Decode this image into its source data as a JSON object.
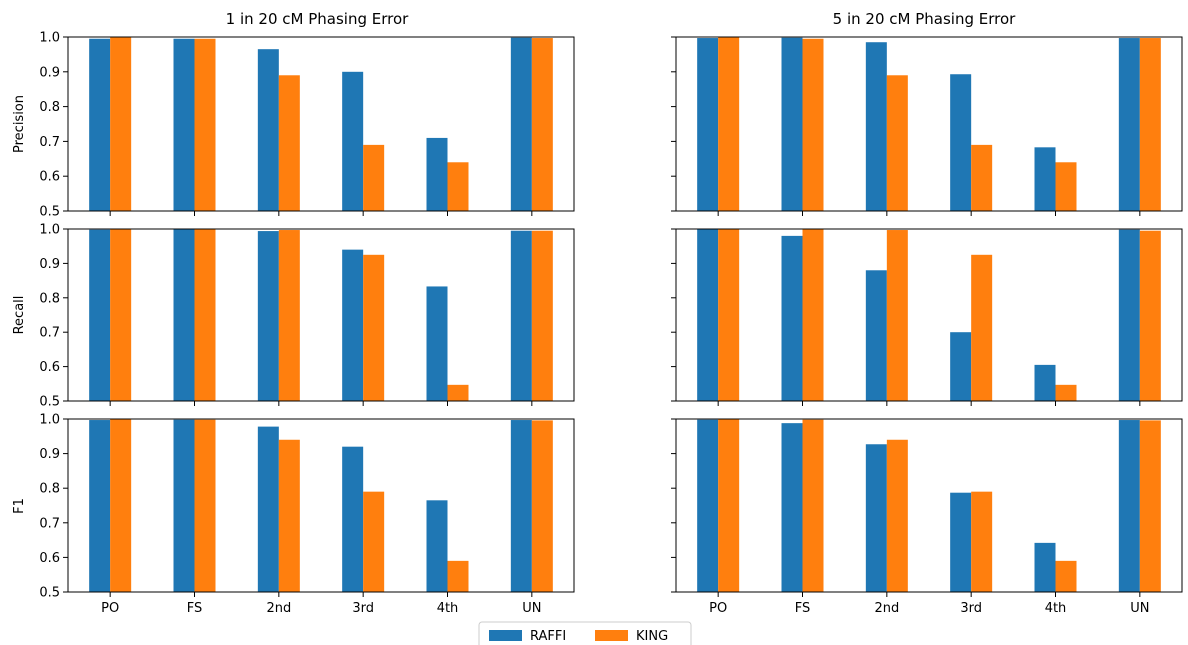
{
  "chart_data": {
    "type": "bar",
    "categories": [
      "PO",
      "FS",
      "2nd",
      "3rd",
      "4th",
      "UN"
    ],
    "columns": [
      {
        "title": "1 in 20 cM Phasing Error"
      },
      {
        "title": "5 in 20 cM Phasing Error"
      }
    ],
    "rows": [
      {
        "ylabel": "Precision"
      },
      {
        "ylabel": "Recall"
      },
      {
        "ylabel": "F1"
      }
    ],
    "ylim": [
      0.5,
      1.0
    ],
    "yticks": [
      "0.5",
      "0.6",
      "0.7",
      "0.8",
      "0.9",
      "1.0"
    ],
    "series_colors": {
      "RAFFI": "#1f77b4",
      "KING": "#ff7f0e"
    },
    "legend": {
      "placement": "bottom-center",
      "items": [
        "RAFFI",
        "KING"
      ]
    },
    "panels": [
      {
        "row": 0,
        "col": 0,
        "series": [
          {
            "name": "RAFFI",
            "values": [
              0.995,
              0.995,
              0.965,
              0.9,
              0.71,
              0.998
            ]
          },
          {
            "name": "KING",
            "values": [
              1.0,
              0.995,
              0.89,
              0.69,
              0.64,
              0.997
            ]
          }
        ]
      },
      {
        "row": 0,
        "col": 1,
        "series": [
          {
            "name": "RAFFI",
            "values": [
              0.997,
              0.998,
              0.985,
              0.893,
              0.683,
              0.997
            ]
          },
          {
            "name": "KING",
            "values": [
              1.0,
              0.995,
              0.89,
              0.69,
              0.64,
              0.997
            ]
          }
        ]
      },
      {
        "row": 1,
        "col": 0,
        "series": [
          {
            "name": "RAFFI",
            "values": [
              0.998,
              0.999,
              0.994,
              0.94,
              0.833,
              0.995
            ]
          },
          {
            "name": "KING",
            "values": [
              1.0,
              0.999,
              0.997,
              0.925,
              0.547,
              0.995
            ]
          }
        ]
      },
      {
        "row": 1,
        "col": 1,
        "series": [
          {
            "name": "RAFFI",
            "values": [
              0.999,
              0.98,
              0.88,
              0.7,
              0.605,
              0.998
            ]
          },
          {
            "name": "KING",
            "values": [
              1.0,
              0.999,
              0.997,
              0.925,
              0.547,
              0.995
            ]
          }
        ]
      },
      {
        "row": 2,
        "col": 0,
        "series": [
          {
            "name": "RAFFI",
            "values": [
              0.997,
              0.998,
              0.978,
              0.92,
              0.765,
              0.997
            ]
          },
          {
            "name": "KING",
            "values": [
              1.0,
              0.998,
              0.94,
              0.79,
              0.59,
              0.996
            ]
          }
        ]
      },
      {
        "row": 2,
        "col": 1,
        "series": [
          {
            "name": "RAFFI",
            "values": [
              0.998,
              0.988,
              0.927,
              0.787,
              0.642,
              0.997
            ]
          },
          {
            "name": "KING",
            "values": [
              1.0,
              0.998,
              0.94,
              0.79,
              0.59,
              0.996
            ]
          }
        ]
      }
    ]
  }
}
